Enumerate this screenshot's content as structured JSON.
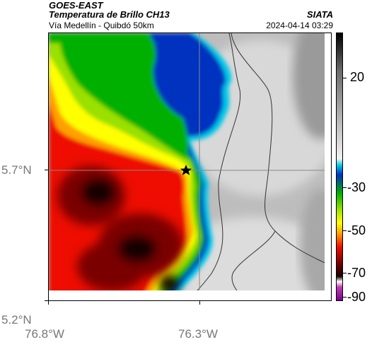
{
  "header": {
    "title_line1": "GOES-EAST",
    "title_line2": "Temperatura de Brillo CH13",
    "subtitle": "Vía Medellín - Quibdó 50km",
    "source": "SIATA",
    "timestamp": "2024-04-14 03:29"
  },
  "map": {
    "lat_labels": [
      "5.7°N",
      "5.2°N"
    ],
    "lon_labels": [
      "76.8°W",
      "76.3°W"
    ],
    "marker_icon": "star-icon",
    "gridline_color": "#888888"
  },
  "colorbar": {
    "labels": [
      "20",
      "-30",
      "-50",
      "-70",
      "-90"
    ],
    "stops": [
      {
        "color": "#000000"
      },
      {
        "color": "#6a6a6a"
      },
      {
        "color": "#f2f2f2"
      },
      {
        "color": "#00c8e8"
      },
      {
        "color": "#0030c0"
      },
      {
        "color": "#00b000"
      },
      {
        "color": "#9ae000"
      },
      {
        "color": "#ffff00"
      },
      {
        "color": "#ffa000"
      },
      {
        "color": "#ee1000"
      },
      {
        "color": "#7a0000"
      },
      {
        "color": "#140000"
      },
      {
        "color": "#ffffff"
      },
      {
        "color": "#c040b0"
      },
      {
        "color": "#780090"
      }
    ]
  }
}
